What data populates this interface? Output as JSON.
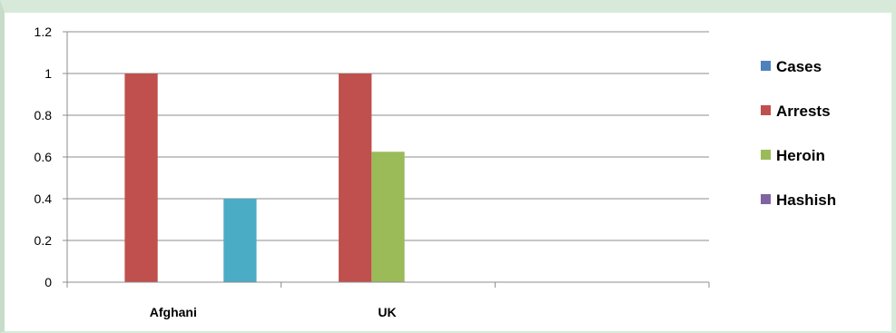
{
  "chart_data": {
    "type": "bar",
    "title": "",
    "xlabel": "",
    "ylabel": "",
    "ylim": [
      0,
      1.2
    ],
    "yticks": [
      "0",
      "0.2",
      "0.4",
      "0.6",
      "0.8",
      "1",
      "1.2"
    ],
    "grid": true,
    "legend_position": "right",
    "categories": [
      "Afghani",
      "UK",
      ""
    ],
    "series": [
      {
        "name": "Cases",
        "color": "#4f81bd",
        "values": [
          0,
          0,
          0
        ]
      },
      {
        "name": "Arrests",
        "color": "#c0504d",
        "values": [
          1,
          1,
          0
        ]
      },
      {
        "name": "Heroin",
        "color": "#9bbb59",
        "values": [
          0,
          0.625,
          0
        ]
      },
      {
        "name": "Hashish",
        "color": "#8064a2",
        "values": [
          0,
          0,
          0
        ]
      },
      {
        "name": "",
        "color": "#4bacc6",
        "values": [
          0.4,
          0,
          0
        ]
      }
    ]
  }
}
